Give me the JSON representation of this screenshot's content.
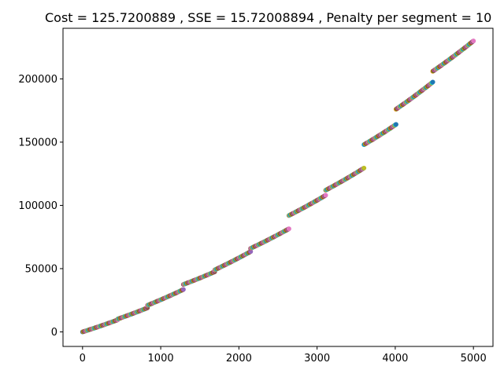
{
  "chart_data": {
    "type": "scatter",
    "title": "Cost = 125.7200889 , SSE = 15.72008894 , Penalty per segment = 10",
    "xlabel": "",
    "ylabel": "",
    "xlim": [
      -250,
      5250
    ],
    "ylim": [
      -11500,
      240000
    ],
    "x_ticks": [
      {
        "value": 0,
        "label": "0"
      },
      {
        "value": 1000,
        "label": "1000"
      },
      {
        "value": 2000,
        "label": "2000"
      },
      {
        "value": 3000,
        "label": "3000"
      },
      {
        "value": 4000,
        "label": "4000"
      },
      {
        "value": 5000,
        "label": "5000"
      }
    ],
    "y_ticks": [
      {
        "value": 0,
        "label": "0"
      },
      {
        "value": 50000,
        "label": "50000"
      },
      {
        "value": 100000,
        "label": "100000"
      },
      {
        "value": 150000,
        "label": "150000"
      },
      {
        "value": 200000,
        "label": "200000"
      }
    ],
    "grid": false,
    "legend": "none",
    "palette": [
      "#1f77b4",
      "#ff7f0e",
      "#2ca02c",
      "#d62728",
      "#9467bd",
      "#8c564b",
      "#e377c2",
      "#7f7f7f",
      "#bcbd22",
      "#17becf"
    ],
    "segments": [
      {
        "x": [
          0,
          450
        ],
        "y": [
          0,
          9500
        ]
      },
      {
        "x": [
          450,
          830
        ],
        "y": [
          10200,
          19000
        ]
      },
      {
        "x": [
          830,
          1290
        ],
        "y": [
          21000,
          33500
        ]
      },
      {
        "x": [
          1290,
          1690
        ],
        "y": [
          37500,
          47500
        ]
      },
      {
        "x": [
          1690,
          2150
        ],
        "y": [
          49000,
          63500
        ]
      },
      {
        "x": [
          2150,
          2640
        ],
        "y": [
          66000,
          81500
        ]
      },
      {
        "x": [
          2640,
          3110
        ],
        "y": [
          92000,
          108000
        ]
      },
      {
        "x": [
          3110,
          3600
        ],
        "y": [
          112000,
          129500
        ]
      },
      {
        "x": [
          3600,
          4010
        ],
        "y": [
          148000,
          164000
        ]
      },
      {
        "x": [
          4010,
          4480
        ],
        "y": [
          176000,
          197500
        ]
      },
      {
        "x": [
          4480,
          5000
        ],
        "y": [
          206000,
          230000
        ]
      }
    ]
  }
}
